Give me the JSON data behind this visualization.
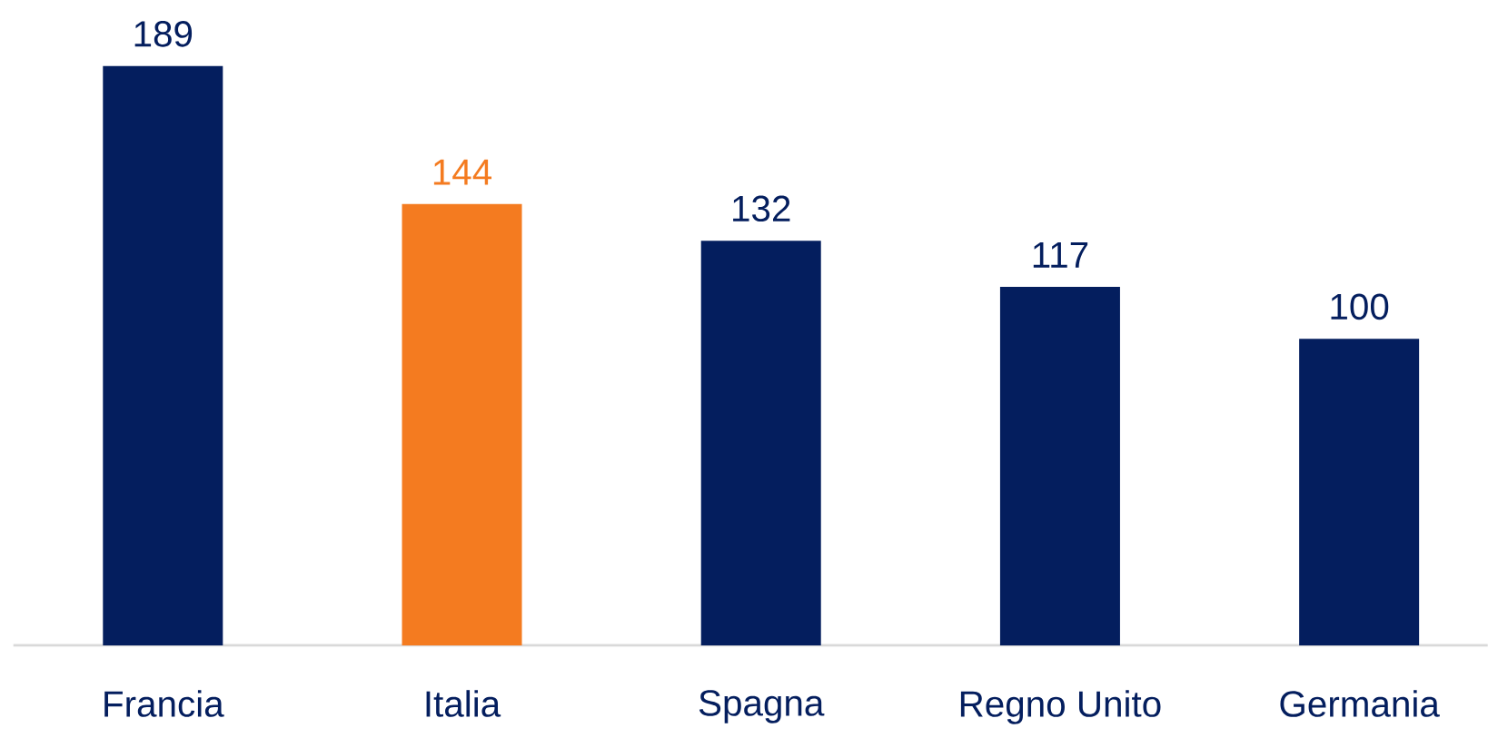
{
  "chart_data": {
    "type": "bar",
    "categories": [
      "Francia",
      "Italia",
      "Spagna",
      "Regno Unito",
      "Germania"
    ],
    "values": [
      189,
      144,
      132,
      117,
      100
    ],
    "colors": [
      "#041e5e",
      "#f47b20",
      "#041e5e",
      "#041e5e",
      "#041e5e"
    ],
    "data_labels": true
  }
}
